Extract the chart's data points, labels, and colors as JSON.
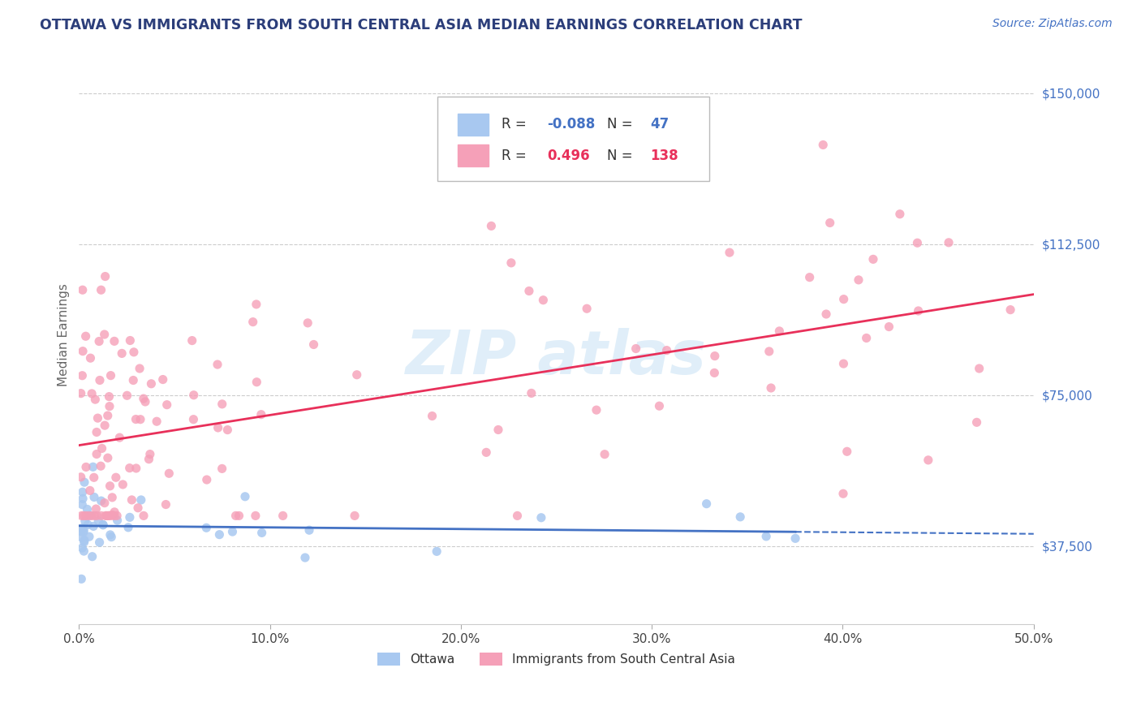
{
  "title": "OTTAWA VS IMMIGRANTS FROM SOUTH CENTRAL ASIA MEDIAN EARNINGS CORRELATION CHART",
  "source": "Source: ZipAtlas.com",
  "ylabel": "Median Earnings",
  "xlim": [
    0.0,
    0.5
  ],
  "ylim": [
    18000,
    162000
  ],
  "yticks": [
    37500,
    75000,
    112500,
    150000
  ],
  "ytick_labels": [
    "$37,500",
    "$75,000",
    "$112,500",
    "$150,000"
  ],
  "xticks": [
    0.0,
    0.1,
    0.2,
    0.3,
    0.4,
    0.5
  ],
  "xtick_labels": [
    "0.0%",
    "10.0%",
    "20.0%",
    "30.0%",
    "40.0%",
    "50.0%"
  ],
  "title_color": "#2c3e7a",
  "source_color": "#4472c4",
  "axis_label_color": "#666666",
  "ytick_color": "#4472c4",
  "xtick_color": "#444444",
  "blue_scatter_color": "#a8c8f0",
  "pink_scatter_color": "#f5a0b8",
  "blue_line_color": "#4472c4",
  "pink_line_color": "#e8305a",
  "grid_color": "#cccccc",
  "background_color": "#ffffff",
  "pink_intercept": 62500,
  "pink_slope": 75000,
  "ottawa_intercept": 42500,
  "ottawa_slope": -4000
}
